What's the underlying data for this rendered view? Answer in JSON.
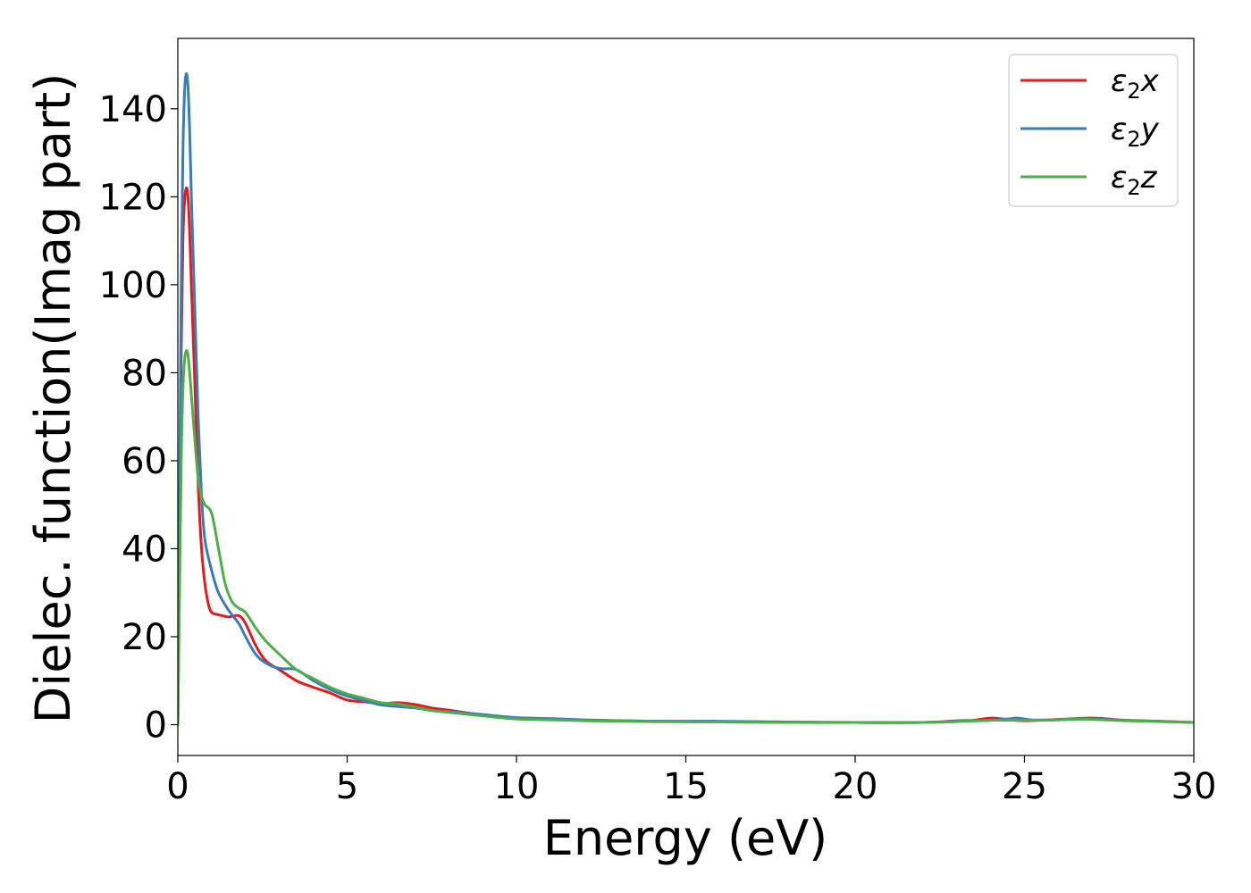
{
  "chart_data": {
    "type": "line",
    "xlabel": "Energy (eV)",
    "ylabel": "Dielec. function(Imag part)",
    "xlim": [
      0,
      30
    ],
    "ylim": [
      -7,
      156
    ],
    "xticks": [
      "0",
      "5",
      "10",
      "15",
      "20",
      "25",
      "30"
    ],
    "yticks": [
      "0",
      "20",
      "40",
      "60",
      "80",
      "100",
      "120",
      "140"
    ],
    "grid": false,
    "legend_position": "top-right",
    "series": [
      {
        "name": "ε2x",
        "legend_main": "ε",
        "legend_sub": "2",
        "legend_suffix": "x",
        "color": "#e41a1c",
        "points": [
          [
            0,
            0
          ],
          [
            0.05,
            40
          ],
          [
            0.1,
            85
          ],
          [
            0.15,
            110
          ],
          [
            0.2,
            119
          ],
          [
            0.25,
            122
          ],
          [
            0.3,
            120
          ],
          [
            0.35,
            112
          ],
          [
            0.4,
            100
          ],
          [
            0.5,
            78
          ],
          [
            0.6,
            55
          ],
          [
            0.7,
            40
          ],
          [
            0.8,
            32
          ],
          [
            0.9,
            27.5
          ],
          [
            1.0,
            25.5
          ],
          [
            1.2,
            25
          ],
          [
            1.5,
            24.5
          ],
          [
            1.8,
            24.8
          ],
          [
            2.0,
            23
          ],
          [
            2.3,
            18
          ],
          [
            2.6,
            14.5
          ],
          [
            3.0,
            12.5
          ],
          [
            3.5,
            10
          ],
          [
            4.0,
            8.5
          ],
          [
            4.5,
            7.2
          ],
          [
            5.0,
            5.6
          ],
          [
            5.5,
            5.2
          ],
          [
            6.0,
            4.8
          ],
          [
            6.5,
            5.0
          ],
          [
            7.0,
            4.6
          ],
          [
            7.5,
            3.8
          ],
          [
            8.0,
            3.3
          ],
          [
            9.0,
            2.2
          ],
          [
            10.0,
            1.5
          ],
          [
            11.0,
            1.3
          ],
          [
            12.0,
            1.0
          ],
          [
            14.0,
            0.8
          ],
          [
            16.0,
            0.7
          ],
          [
            18.0,
            0.6
          ],
          [
            20.0,
            0.5
          ],
          [
            22.0,
            0.5
          ],
          [
            23.0,
            0.9
          ],
          [
            23.5,
            1.0
          ],
          [
            24.0,
            1.5
          ],
          [
            24.5,
            1.2
          ],
          [
            25.0,
            0.9
          ],
          [
            26.0,
            1.2
          ],
          [
            27.0,
            1.5
          ],
          [
            28.0,
            1.0
          ],
          [
            29.0,
            0.8
          ],
          [
            30.0,
            0.5
          ]
        ]
      },
      {
        "name": "ε2y",
        "legend_main": "ε",
        "legend_sub": "2",
        "legend_suffix": "y",
        "color": "#377eb8",
        "points": [
          [
            0,
            0
          ],
          [
            0.05,
            50
          ],
          [
            0.1,
            100
          ],
          [
            0.15,
            130
          ],
          [
            0.2,
            144
          ],
          [
            0.25,
            148
          ],
          [
            0.3,
            145
          ],
          [
            0.35,
            135
          ],
          [
            0.4,
            120
          ],
          [
            0.5,
            95
          ],
          [
            0.6,
            70
          ],
          [
            0.7,
            52
          ],
          [
            0.8,
            42
          ],
          [
            1.0,
            35
          ],
          [
            1.2,
            30
          ],
          [
            1.5,
            26
          ],
          [
            1.8,
            23
          ],
          [
            2.0,
            20
          ],
          [
            2.3,
            16
          ],
          [
            2.6,
            14
          ],
          [
            3.0,
            12.8
          ],
          [
            3.5,
            12.5
          ],
          [
            4.0,
            10
          ],
          [
            4.5,
            8
          ],
          [
            5.0,
            6.5
          ],
          [
            5.5,
            5.5
          ],
          [
            6.0,
            4.5
          ],
          [
            7.0,
            3.8
          ],
          [
            7.5,
            3.2
          ],
          [
            8.0,
            3.0
          ],
          [
            9.0,
            2.3
          ],
          [
            10.0,
            1.6
          ],
          [
            11.0,
            1.4
          ],
          [
            12.0,
            1.1
          ],
          [
            14.0,
            0.8
          ],
          [
            16.0,
            0.8
          ],
          [
            18.0,
            0.6
          ],
          [
            20.0,
            0.5
          ],
          [
            22.0,
            0.5
          ],
          [
            23.0,
            0.8
          ],
          [
            24.0,
            1.0
          ],
          [
            24.5,
            1.3
          ],
          [
            24.8,
            1.5
          ],
          [
            25.2,
            1.1
          ],
          [
            26.0,
            1.1
          ],
          [
            27.0,
            1.3
          ],
          [
            28.0,
            1.0
          ],
          [
            30.0,
            0.5
          ]
        ]
      },
      {
        "name": "ε2z",
        "legend_main": "ε",
        "legend_sub": "2",
        "legend_suffix": "z",
        "color": "#4daf4a",
        "points": [
          [
            0,
            0
          ],
          [
            0.05,
            30
          ],
          [
            0.1,
            60
          ],
          [
            0.15,
            76
          ],
          [
            0.2,
            83
          ],
          [
            0.25,
            85
          ],
          [
            0.3,
            84
          ],
          [
            0.35,
            80
          ],
          [
            0.4,
            75
          ],
          [
            0.5,
            65
          ],
          [
            0.6,
            56
          ],
          [
            0.7,
            52
          ],
          [
            0.8,
            50
          ],
          [
            1.0,
            48
          ],
          [
            1.2,
            40
          ],
          [
            1.4,
            32
          ],
          [
            1.6,
            28
          ],
          [
            1.8,
            26.5
          ],
          [
            2.0,
            25.5
          ],
          [
            2.3,
            22
          ],
          [
            2.6,
            19
          ],
          [
            3.0,
            16
          ],
          [
            3.5,
            12.5
          ],
          [
            4.0,
            10.5
          ],
          [
            4.5,
            8.5
          ],
          [
            5.0,
            7
          ],
          [
            5.5,
            6
          ],
          [
            6.0,
            5
          ],
          [
            6.5,
            4.7
          ],
          [
            7.0,
            4
          ],
          [
            7.5,
            3.2
          ],
          [
            8.0,
            2.8
          ],
          [
            9.0,
            2.0
          ],
          [
            10.0,
            1.3
          ],
          [
            11.0,
            1.1
          ],
          [
            12.0,
            0.9
          ],
          [
            14.0,
            0.7
          ],
          [
            16.0,
            0.6
          ],
          [
            18.0,
            0.5
          ],
          [
            20.0,
            0.5
          ],
          [
            22.0,
            0.5
          ],
          [
            23.0,
            0.7
          ],
          [
            24.0,
            1.0
          ],
          [
            25.0,
            1.0
          ],
          [
            26.0,
            1.1
          ],
          [
            26.5,
            1.3
          ],
          [
            27.0,
            1.2
          ],
          [
            28.0,
            0.9
          ],
          [
            30.0,
            0.5
          ]
        ]
      }
    ]
  }
}
